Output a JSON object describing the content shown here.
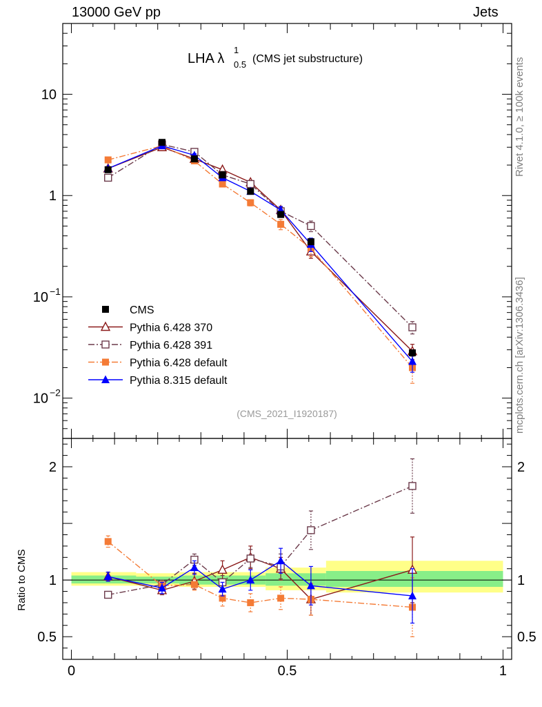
{
  "header": {
    "left": "13000 GeV pp",
    "right": "Jets"
  },
  "side_labels": {
    "rivet": "Rivet 4.1.0, ≥ 100k events",
    "mcplots": "mcplots.cern.ch [arXiv:1306.3436]"
  },
  "chart_data": {
    "type": "line",
    "title": "LHA",
    "title_symbol": "λ",
    "title_sup": "1",
    "title_sub": "0.5",
    "subtitle": "(CMS jet substructure)",
    "analysis_tag": "(CMS_2021_I1920187)",
    "main": {
      "yscale": "log",
      "ylim": [
        0.004,
        50
      ],
      "tick_labels": [
        {
          "value": 0.01,
          "base": "10",
          "exp": "−2"
        },
        {
          "value": 0.1,
          "base": "10",
          "exp": "−1"
        },
        {
          "value": 1,
          "base": "1",
          "exp": ""
        },
        {
          "value": 10,
          "base": "10",
          "exp": ""
        }
      ]
    },
    "ratio": {
      "ylabel": "Ratio to CMS",
      "ylim": [
        0.3,
        2.25
      ],
      "tick_labels": [
        {
          "value": 0.5,
          "label": "0.5"
        },
        {
          "value": 1,
          "label": "1"
        },
        {
          "value": 2,
          "label": "2"
        }
      ],
      "band_inner": [
        {
          "x0": 0.0,
          "x1": 0.15,
          "lo": 0.97,
          "hi": 1.04
        },
        {
          "x0": 0.15,
          "x1": 0.25,
          "lo": 0.97,
          "hi": 1.03
        },
        {
          "x0": 0.25,
          "x1": 0.45,
          "lo": 0.96,
          "hi": 1.04
        },
        {
          "x0": 0.45,
          "x1": 0.59,
          "lo": 0.95,
          "hi": 1.06
        },
        {
          "x0": 0.59,
          "x1": 1.0,
          "lo": 0.94,
          "hi": 1.08
        }
      ],
      "band_outer": [
        {
          "x0": 0.0,
          "x1": 0.15,
          "lo": 0.95,
          "hi": 1.07
        },
        {
          "x0": 0.15,
          "x1": 0.25,
          "lo": 0.95,
          "hi": 1.06
        },
        {
          "x0": 0.25,
          "x1": 0.45,
          "lo": 0.94,
          "hi": 1.07
        },
        {
          "x0": 0.45,
          "x1": 0.59,
          "lo": 0.91,
          "hi": 1.11
        },
        {
          "x0": 0.59,
          "x1": 1.0,
          "lo": 0.89,
          "hi": 1.17
        }
      ]
    },
    "xlim": [
      -0.02,
      1.02
    ],
    "x_tick_labels": [
      {
        "value": 0,
        "label": "0"
      },
      {
        "value": 0.5,
        "label": "0.5"
      },
      {
        "value": 1,
        "label": "1"
      }
    ],
    "x": [
      0.085,
      0.21,
      0.285,
      0.35,
      0.415,
      0.485,
      0.555,
      0.79
    ],
    "series": [
      {
        "name": "CMS",
        "color": "#000000",
        "marker": "square-filled",
        "dash": "",
        "values": [
          1.8,
          3.35,
          2.3,
          1.6,
          1.1,
          0.65,
          0.35,
          0.028
        ],
        "errors": [
          0.05,
          0.08,
          0.06,
          0.05,
          0.04,
          0.03,
          0.02,
          0.002
        ]
      },
      {
        "name": "Pythia 6.428 370",
        "color": "#8b1a1a",
        "marker": "triangle-open",
        "dash": "",
        "values": [
          1.85,
          3.0,
          2.3,
          1.8,
          1.35,
          0.72,
          0.28,
          0.029
        ],
        "errors": [
          0.05,
          0.1,
          0.07,
          0.06,
          0.06,
          0.05,
          0.04,
          0.005
        ],
        "ratio": [
          1.03,
          0.91,
          0.99,
          1.09,
          1.2,
          1.1,
          0.83,
          1.09
        ],
        "ratio_err": [
          0.04,
          0.04,
          0.07,
          0.08,
          0.1,
          0.1,
          0.14,
          0.29
        ]
      },
      {
        "name": "Pythia 6.428 391",
        "color": "#6b3a4a",
        "marker": "square-open",
        "dash": "9,3,2,3",
        "values": [
          1.5,
          3.2,
          2.7,
          1.6,
          1.3,
          0.7,
          0.5,
          0.05
        ],
        "errors": [
          0.06,
          0.1,
          0.09,
          0.06,
          0.06,
          0.06,
          0.06,
          0.007
        ],
        "ratio": [
          0.87,
          0.96,
          1.18,
          0.98,
          1.19,
          1.12,
          1.44,
          1.83
        ],
        "ratio_err": [
          0.03,
          0.04,
          0.05,
          0.06,
          0.08,
          0.11,
          0.17,
          0.24
        ]
      },
      {
        "name": "Pythia 6.428 default",
        "color": "#f47b36",
        "marker": "square-filled",
        "dash": "9,3,2,3",
        "values": [
          2.25,
          3.1,
          2.2,
          1.3,
          0.85,
          0.52,
          0.3,
          0.02
        ],
        "errors": [
          0.08,
          0.1,
          0.1,
          0.08,
          0.06,
          0.06,
          0.05,
          0.006
        ],
        "ratio": [
          1.34,
          0.95,
          0.96,
          0.84,
          0.8,
          0.84,
          0.83,
          0.76
        ],
        "ratio_err": [
          0.05,
          0.04,
          0.05,
          0.07,
          0.08,
          0.1,
          0.14,
          0.26
        ]
      },
      {
        "name": "Pythia 8.315 default",
        "color": "#0000ff",
        "marker": "triangle-filled",
        "dash": "",
        "values": [
          1.85,
          3.1,
          2.5,
          1.5,
          1.1,
          0.72,
          0.33,
          0.023
        ],
        "errors": [
          0.06,
          0.1,
          0.09,
          0.06,
          0.06,
          0.06,
          0.05,
          0.005
        ],
        "ratio": [
          1.03,
          0.93,
          1.11,
          0.92,
          1.0,
          1.17,
          0.95,
          0.86
        ],
        "ratio_err": [
          0.04,
          0.05,
          0.06,
          0.06,
          0.09,
          0.11,
          0.17,
          0.24
        ]
      }
    ]
  }
}
